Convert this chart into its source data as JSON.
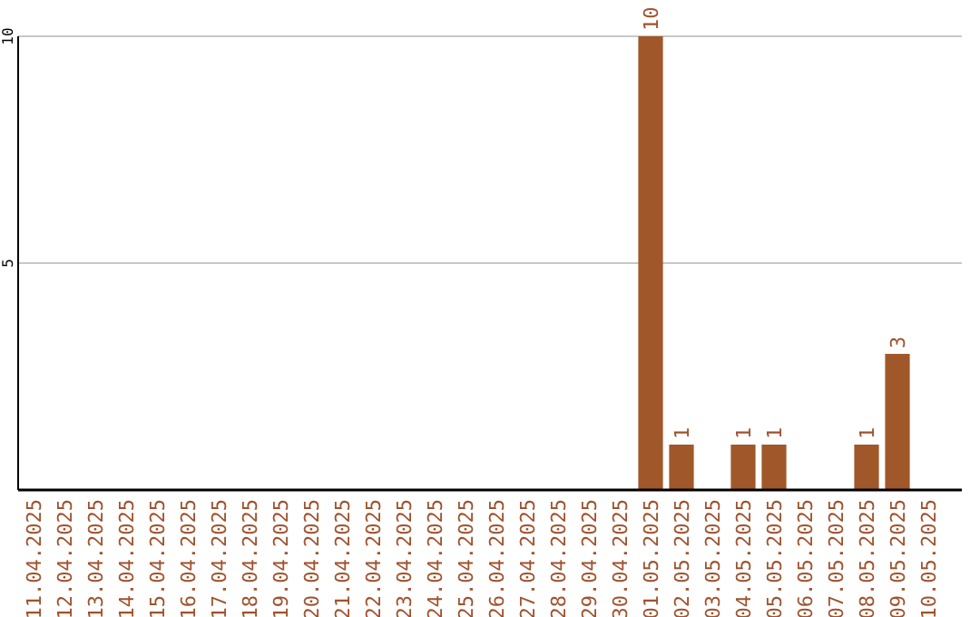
{
  "chart_data": {
    "type": "bar",
    "categories": [
      "11.04.2025",
      "12.04.2025",
      "13.04.2025",
      "14.04.2025",
      "15.04.2025",
      "16.04.2025",
      "17.04.2025",
      "18.04.2025",
      "19.04.2025",
      "20.04.2025",
      "21.04.2025",
      "22.04.2025",
      "23.04.2025",
      "24.04.2025",
      "25.04.2025",
      "26.04.2025",
      "27.04.2025",
      "28.04.2025",
      "29.04.2025",
      "30.04.2025",
      "01.05.2025",
      "02.05.2025",
      "03.05.2025",
      "04.05.2025",
      "05.05.2025",
      "06.05.2025",
      "07.05.2025",
      "08.05.2025",
      "09.05.2025",
      "10.05.2025"
    ],
    "values": [
      0,
      0,
      0,
      0,
      0,
      0,
      0,
      0,
      0,
      0,
      0,
      0,
      0,
      0,
      0,
      0,
      0,
      0,
      0,
      0,
      10,
      1,
      0,
      1,
      1,
      0,
      0,
      1,
      3,
      0
    ],
    "value_labels": [
      null,
      null,
      null,
      null,
      null,
      null,
      null,
      null,
      null,
      null,
      null,
      null,
      null,
      null,
      null,
      null,
      null,
      null,
      null,
      null,
      "10",
      "1",
      null,
      "1",
      "1",
      null,
      null,
      "1",
      "3",
      null
    ],
    "color": "#a0582a",
    "ylim": [
      0,
      10
    ],
    "yticks": [
      5,
      10
    ],
    "grid": "y"
  }
}
